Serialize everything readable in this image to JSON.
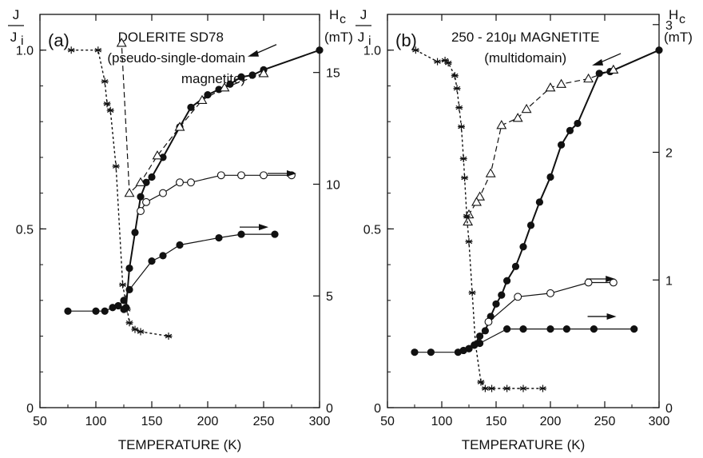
{
  "chart_data": [
    {
      "type": "line",
      "panel_label": "(a)",
      "title": "DOLERITE SD78",
      "subtitle_line1": "(pseudo-single-domain",
      "subtitle_line2": "magnetite)",
      "xlabel": "TEMPERATURE (K)",
      "ylabel_top": "J",
      "ylabel_bottom": "J",
      "ylabel_sub": "i",
      "y2label": "H",
      "y2label_sub": "c",
      "y2unit": "(mT)",
      "xlim": [
        50,
        300
      ],
      "ylim": [
        0,
        1.1
      ],
      "y2lim": [
        0,
        17.6
      ],
      "xticks": [
        "50",
        "100",
        "150",
        "200",
        "250",
        "300"
      ],
      "yticks": [
        "0",
        "0.5",
        "1.0"
      ],
      "y2ticks": [
        "0",
        "5",
        "10",
        "15"
      ],
      "series": [
        {
          "id": "warming-filled",
          "marker": "filled-circle",
          "line": "solid",
          "axis": "left",
          "x": [
            75,
            100,
            108,
            115,
            120,
            125,
            130,
            150,
            160,
            175,
            210,
            230,
            260
          ],
          "y": [
            0.27,
            0.27,
            0.27,
            0.28,
            0.285,
            0.3,
            0.33,
            0.41,
            0.425,
            0.455,
            0.475,
            0.485,
            0.485
          ]
        },
        {
          "id": "cooling-filled",
          "marker": "filled-circle",
          "line": "solid-bold",
          "axis": "left",
          "x": [
            300,
            250,
            240,
            230,
            220,
            210,
            200,
            185,
            175,
            160,
            150,
            145,
            140,
            135,
            130,
            127,
            125
          ],
          "y": [
            1.0,
            0.945,
            0.93,
            0.925,
            0.905,
            0.89,
            0.875,
            0.84,
            0.785,
            0.7,
            0.645,
            0.63,
            0.59,
            0.49,
            0.39,
            0.28,
            0.275
          ]
        },
        {
          "id": "warming-open",
          "marker": "open-circle",
          "line": "solid",
          "axis": "left",
          "x": [
            140,
            145,
            160,
            175,
            185,
            212,
            230,
            250,
            275
          ],
          "y": [
            0.55,
            0.575,
            0.6,
            0.63,
            0.63,
            0.65,
            0.65,
            0.65,
            0.65
          ]
        },
        {
          "id": "cooling-open-triangle",
          "marker": "open-triangle",
          "line": "dashed",
          "axis": "left",
          "x": [
            250,
            215,
            195,
            175,
            155,
            140,
            130,
            123
          ],
          "y": [
            0.935,
            0.895,
            0.86,
            0.785,
            0.705,
            0.63,
            0.6,
            1.02
          ]
        },
        {
          "id": "hc",
          "marker": "asterisk",
          "line": "dotted",
          "axis": "right",
          "x": [
            78,
            102,
            108,
            110,
            113,
            118,
            124,
            128,
            130,
            135,
            140,
            165
          ],
          "y": [
            16.0,
            16.0,
            14.6,
            13.6,
            13.3,
            10.8,
            5.5,
            4.4,
            3.8,
            3.5,
            3.4,
            3.2
          ]
        }
      ],
      "arrows": [
        {
          "label": "cooling",
          "x": 250,
          "y": 1.0,
          "dir": "left"
        },
        {
          "label": "warming",
          "x": 265,
          "y": 0.655,
          "dir": "right"
        },
        {
          "label": "warming",
          "x": 240,
          "y": 0.505,
          "dir": "right"
        }
      ]
    },
    {
      "type": "line",
      "panel_label": "(b)",
      "title": "250 - 210μ MAGNETITE",
      "subtitle_line1": "(multidomain)",
      "subtitle_line2": "",
      "xlabel": "TEMPERATURE (K)",
      "ylabel_top": "J",
      "ylabel_bottom": "J",
      "ylabel_sub": "i",
      "y2label": "H",
      "y2label_sub": "c",
      "y2unit": "(mT)",
      "xlim": [
        50,
        300
      ],
      "ylim": [
        0,
        1.1
      ],
      "y2lim": [
        0,
        3.08
      ],
      "xticks": [
        "50",
        "100",
        "150",
        "200",
        "250",
        "300"
      ],
      "yticks": [
        "0",
        "0.5",
        "1.0"
      ],
      "y2ticks": [
        "0",
        "1",
        "2",
        "3"
      ],
      "series": [
        {
          "id": "warming-filled",
          "marker": "filled-circle",
          "line": "solid",
          "axis": "left",
          "x": [
            75,
            90,
            115,
            120,
            125,
            130,
            135,
            160,
            175,
            200,
            215,
            240,
            277
          ],
          "y": [
            0.155,
            0.155,
            0.155,
            0.16,
            0.165,
            0.175,
            0.18,
            0.22,
            0.22,
            0.22,
            0.22,
            0.22,
            0.22
          ]
        },
        {
          "id": "cooling-filled",
          "marker": "filled-circle",
          "line": "solid-bold",
          "axis": "left",
          "x": [
            300,
            255,
            245,
            225,
            218,
            210,
            200,
            190,
            182,
            175,
            168,
            160,
            155,
            150,
            145,
            140,
            135,
            130,
            125
          ],
          "y": [
            1.0,
            0.94,
            0.935,
            0.795,
            0.775,
            0.735,
            0.645,
            0.575,
            0.51,
            0.45,
            0.395,
            0.355,
            0.315,
            0.29,
            0.255,
            0.215,
            0.2,
            0.175,
            0.165
          ]
        },
        {
          "id": "warming-open",
          "marker": "open-circle",
          "line": "solid",
          "axis": "left",
          "x": [
            143,
            170,
            200,
            235,
            258
          ],
          "y": [
            0.24,
            0.31,
            0.32,
            0.35,
            0.35
          ]
        },
        {
          "id": "cooling-open-triangle",
          "marker": "open-triangle",
          "line": "dashed",
          "axis": "left",
          "x": [
            258,
            235,
            210,
            200,
            178,
            170,
            155,
            145,
            135,
            132,
            125,
            124
          ],
          "y": [
            0.945,
            0.92,
            0.905,
            0.895,
            0.835,
            0.81,
            0.79,
            0.655,
            0.59,
            0.575,
            0.54,
            0.52
          ]
        },
        {
          "id": "hc",
          "marker": "asterisk",
          "line": "dotted",
          "axis": "right",
          "x": [
            76,
            96,
            103,
            106,
            112,
            114,
            116,
            118,
            120,
            121,
            123,
            125,
            128,
            131,
            136,
            140,
            146,
            160,
            175,
            193
          ],
          "y": [
            2.8,
            2.71,
            2.72,
            2.7,
            2.6,
            2.5,
            2.35,
            2.2,
            1.95,
            1.8,
            1.5,
            1.3,
            0.9,
            0.5,
            0.2,
            0.15,
            0.15,
            0.15,
            0.15,
            0.15
          ]
        }
      ],
      "arrows": [
        {
          "label": "cooling",
          "x": 253,
          "y": 0.975,
          "dir": "left"
        },
        {
          "label": "warming",
          "x": 245,
          "y": 0.36,
          "dir": "right"
        },
        {
          "label": "warming",
          "x": 246,
          "y": 0.255,
          "dir": "right"
        }
      ]
    }
  ]
}
